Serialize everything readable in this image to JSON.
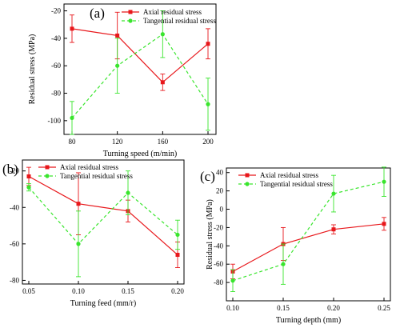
{
  "colors": {
    "axial": "#e8171b",
    "tangential": "#39e52d"
  },
  "chart_data": [
    {
      "type": "line",
      "panel_label": "(a)",
      "xlabel": "Turning speed (m/min)",
      "ylabel": "Residual stress (MPa)",
      "x": [
        80,
        120,
        160,
        200
      ],
      "xticks": [
        "80",
        "120",
        "160",
        "200"
      ],
      "xlim": [
        80,
        200
      ],
      "ylim": [
        -110,
        -15
      ],
      "yticks": [
        -100,
        -80,
        -60,
        -40,
        -20
      ],
      "legend_position": "top-left",
      "series": [
        {
          "name": "Axial residual stress",
          "style": "solid",
          "color": "#e8171b",
          "values": [
            -33,
            -38,
            -72,
            -44
          ],
          "errors": [
            10,
            17,
            6,
            11
          ]
        },
        {
          "name": "Tangential residual stress",
          "style": "dashed",
          "color": "#39e52d",
          "values": [
            -98,
            -60,
            -37,
            -88
          ],
          "errors": [
            12,
            20,
            17,
            19
          ]
        }
      ]
    },
    {
      "type": "line",
      "panel_label": "(b)",
      "xlabel": "Turning feed (mm/r)",
      "ylabel": "Residual stress (MPa)",
      "x": [
        0.05,
        0.1,
        0.15,
        0.2
      ],
      "xticks": [
        "0.05",
        "0.10",
        "0.15",
        "0.20"
      ],
      "xlim": [
        0.05,
        0.2
      ],
      "ylim": [
        -82,
        -14
      ],
      "yticks": [
        -80,
        -60,
        -40,
        -20
      ],
      "legend_position": "top-left",
      "series": [
        {
          "name": "Axial residual stress",
          "style": "solid",
          "color": "#e8171b",
          "values": [
            -23,
            -38,
            -42,
            -66
          ],
          "errors": [
            5,
            17,
            6,
            7
          ]
        },
        {
          "name": "Tangential residual stress",
          "style": "dashed",
          "color": "#39e52d",
          "values": [
            -29,
            -60,
            -32,
            -55
          ],
          "errors": [
            2,
            18,
            12,
            8
          ]
        }
      ]
    },
    {
      "type": "line",
      "panel_label": "(c)",
      "xlabel": "Turning depth (mm)",
      "ylabel": "Residual stress (MPa)",
      "x": [
        0.1,
        0.15,
        0.2,
        0.25
      ],
      "xticks": [
        "0.10",
        "0.15",
        "0.20",
        "0.25"
      ],
      "xlim": [
        0.1,
        0.25
      ],
      "ylim": [
        -100,
        45
      ],
      "yticks": [
        -80,
        -60,
        -40,
        -20,
        0,
        20,
        40
      ],
      "legend_position": "top-left",
      "series": [
        {
          "name": "Axial residual stress",
          "style": "solid",
          "color": "#e8171b",
          "values": [
            -68,
            -38,
            -22,
            -16
          ],
          "errors": [
            8,
            18,
            5,
            7
          ]
        },
        {
          "name": "Tangential residual stress",
          "style": "dashed",
          "color": "#39e52d",
          "values": [
            -78,
            -60,
            17,
            30
          ],
          "errors": [
            12,
            22,
            20,
            16
          ]
        }
      ]
    }
  ]
}
